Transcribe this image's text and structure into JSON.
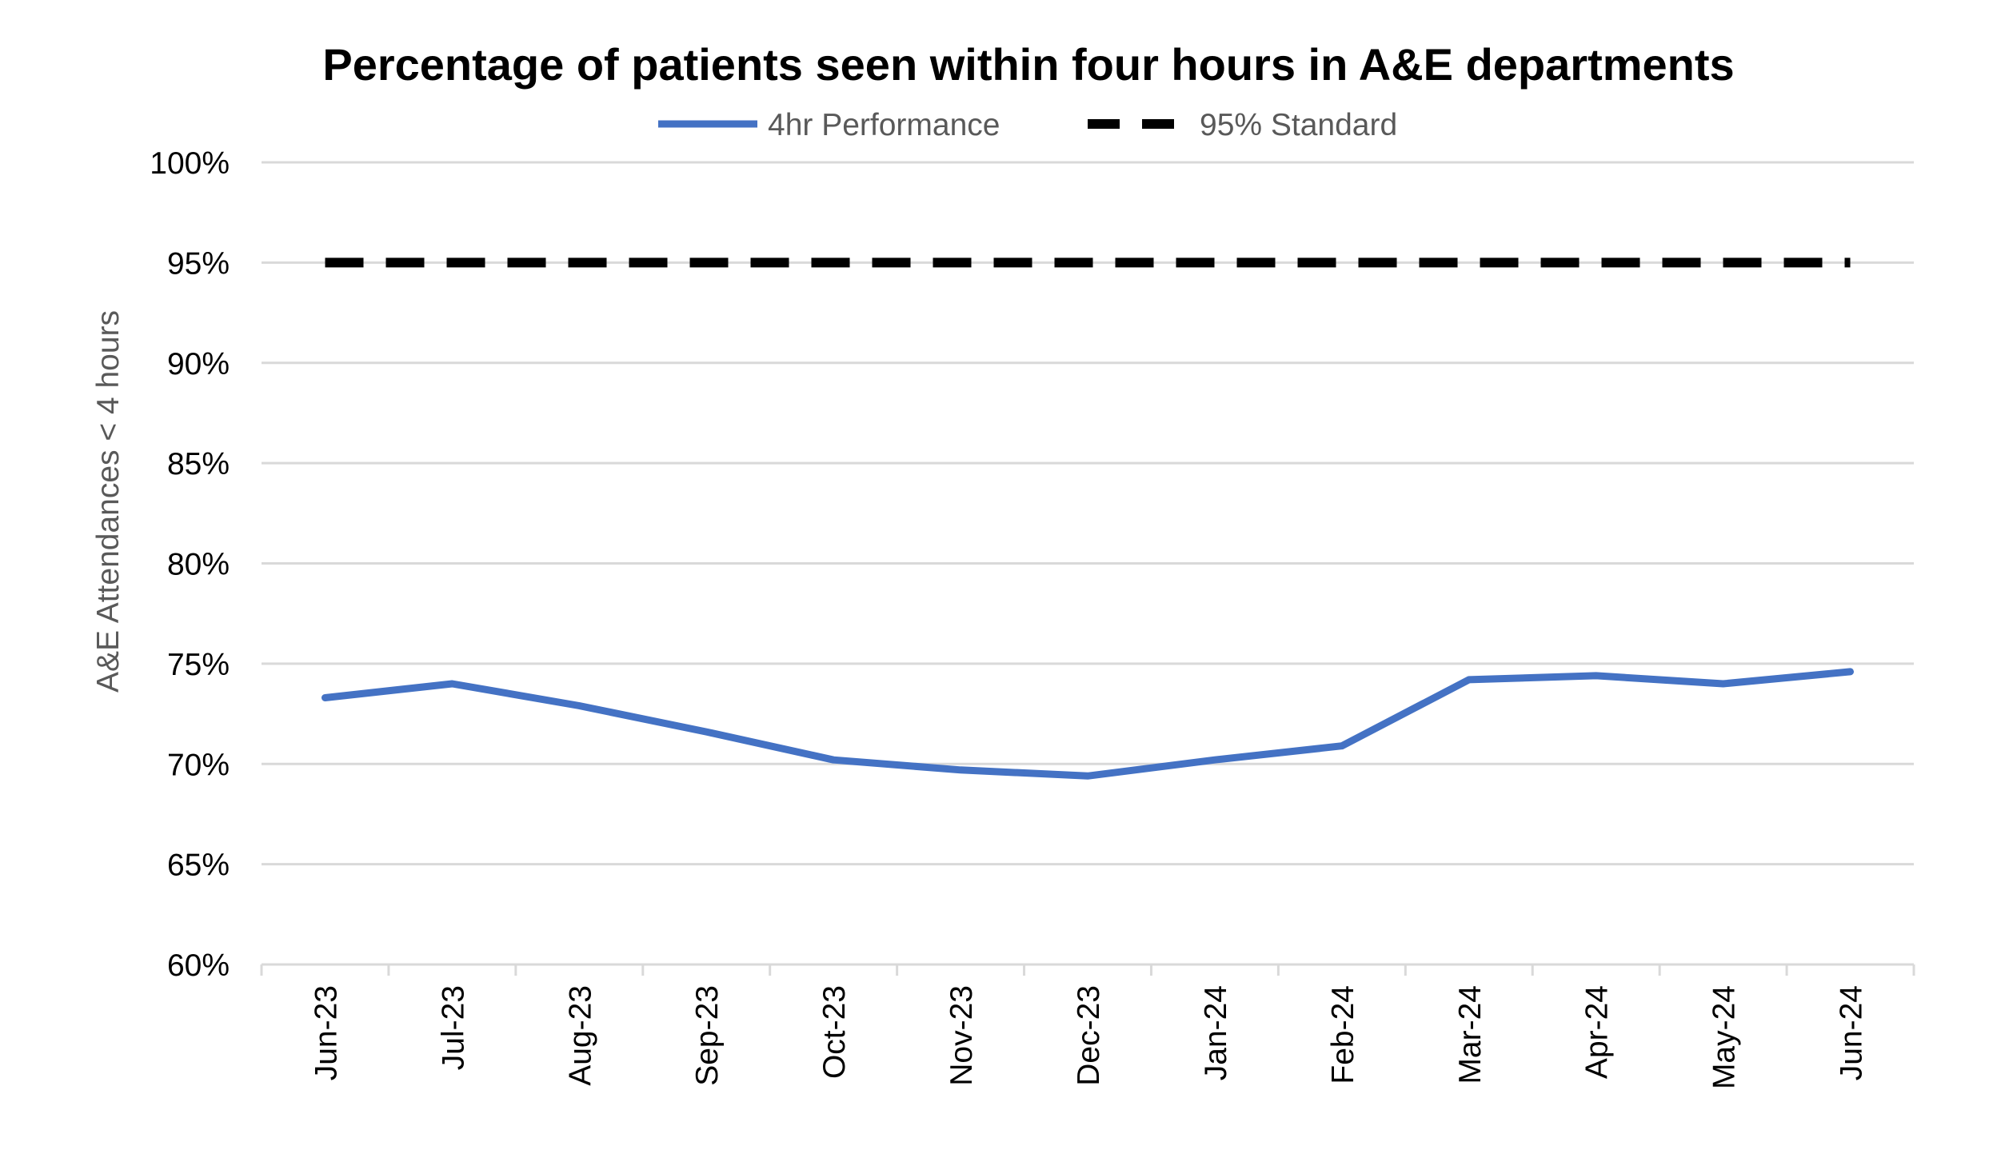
{
  "chart_data": {
    "type": "line",
    "title": "Percentage of patients seen within four hours in A&E departments",
    "xlabel": "",
    "ylabel": "A&E Attendances < 4 hours",
    "categories": [
      "Jun-23",
      "Jul-23",
      "Aug-23",
      "Sep-23",
      "Oct-23",
      "Nov-23",
      "Dec-23",
      "Jan-24",
      "Feb-24",
      "Mar-24",
      "Apr-24",
      "May-24",
      "Jun-24"
    ],
    "series": [
      {
        "name": "4hr Performance",
        "color": "#4472C4",
        "style": "solid",
        "values": [
          73.3,
          74.0,
          72.9,
          71.6,
          70.2,
          69.7,
          69.4,
          70.2,
          70.9,
          74.2,
          74.4,
          74.0,
          74.6
        ]
      },
      {
        "name": "95% Standard",
        "color": "#000000",
        "style": "dashed",
        "values": [
          95,
          95,
          95,
          95,
          95,
          95,
          95,
          95,
          95,
          95,
          95,
          95,
          95
        ]
      }
    ],
    "ylim": [
      60,
      100
    ],
    "yticks": [
      60,
      65,
      70,
      75,
      80,
      85,
      90,
      95,
      100
    ],
    "ytick_labels": [
      "60%",
      "65%",
      "70%",
      "75%",
      "80%",
      "85%",
      "90%",
      "95%",
      "100%"
    ],
    "grid": "horizontal",
    "legend_position": "top"
  }
}
